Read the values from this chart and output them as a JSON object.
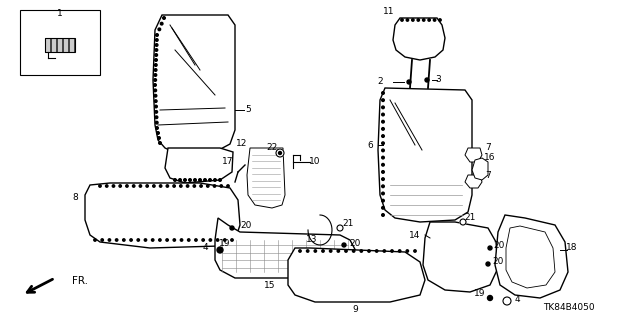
{
  "part_number": "TK84B4050",
  "bg": "#ffffff",
  "lc": "#000000",
  "fig_w": 6.4,
  "fig_h": 3.19,
  "dpi": 100
}
